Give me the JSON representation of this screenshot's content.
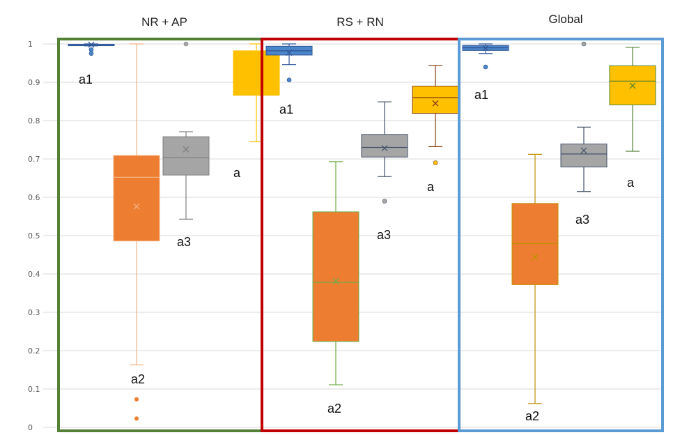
{
  "chart_data": {
    "type": "box",
    "ylim": [
      0,
      1
    ],
    "yticks": [
      "0",
      "0.1",
      "0.2",
      "0.3",
      "0.4",
      "0.5",
      "0.6",
      "0.7",
      "0.8",
      "0.9",
      "1"
    ],
    "grid": true,
    "colors": {
      "blue": "#4a86c8",
      "orange": "#ed7d31",
      "gray": "#a5a5a5",
      "gold": "#ffc000",
      "panel_green": "#538135",
      "panel_red": "#c00000",
      "panel_blue": "#5b9bd5"
    },
    "groups": [
      {
        "title": "NR + AP",
        "panel_color": "#538135",
        "boxes": [
          {
            "color": "#4a86c8",
            "whisker_color": "#2f5597",
            "min": 0.995,
            "q1": 0.997,
            "median": 0.998,
            "q3": 0.999,
            "max": 1.0,
            "mean": 0.998,
            "outliers": [
              0.985,
              0.975
            ],
            "label": "a1"
          },
          {
            "color": "#ed7d31",
            "whisker_color": "#f4b183",
            "min": 0.163,
            "q1": 0.486,
            "median": 0.652,
            "q3": 0.709,
            "max": 1.0,
            "mean": 0.576,
            "outliers": [
              0.073,
              0.023
            ],
            "label": "a2"
          },
          {
            "color": "#a5a5a5",
            "whisker_color": "#7f7f7f",
            "min": 0.543,
            "q1": 0.658,
            "median": 0.704,
            "q3": 0.758,
            "max": 0.771,
            "mean": 0.725,
            "outliers": [
              1.0
            ],
            "label": "a3"
          },
          {
            "color": "#ffc000",
            "whisker_color": "#ffc000",
            "min": 0.745,
            "q1": 0.866,
            "median": 0.974,
            "q3": 0.982,
            "max": 1.0,
            "mean": 0.928,
            "outliers": [],
            "label": "a"
          }
        ]
      },
      {
        "title": "RS + RN",
        "panel_color": "#c00000",
        "boxes": [
          {
            "color": "#4a86c8",
            "whisker_color": "#2f5597",
            "min": 0.946,
            "q1": 0.971,
            "median": 0.982,
            "q3": 0.994,
            "max": 1.0,
            "mean": 0.977,
            "outliers": [
              0.906
            ],
            "label": "a1"
          },
          {
            "color": "#ed7d31",
            "whisker_color": "#70ad47",
            "min": 0.111,
            "q1": 0.224,
            "median": 0.378,
            "q3": 0.562,
            "max": 0.693,
            "mean": 0.381,
            "outliers": [],
            "label": "a2"
          },
          {
            "color": "#a5a5a5",
            "whisker_color": "#44546a",
            "min": 0.654,
            "q1": 0.705,
            "median": 0.73,
            "q3": 0.764,
            "max": 0.849,
            "mean": 0.728,
            "outliers": [
              0.59
            ],
            "label": "a3"
          },
          {
            "color": "#ffc000",
            "whisker_color": "#843c0c",
            "min": 0.732,
            "q1": 0.819,
            "median": 0.86,
            "q3": 0.89,
            "max": 0.944,
            "mean": 0.845,
            "outliers": [
              0.69
            ],
            "label": "a"
          }
        ]
      },
      {
        "title": "Global",
        "panel_color": "#5b9bd5",
        "boxes": [
          {
            "color": "#4a86c8",
            "whisker_color": "#2f5597",
            "min": 0.975,
            "q1": 0.983,
            "median": 0.99,
            "q3": 0.996,
            "max": 1.0,
            "mean": 0.989,
            "outliers": [
              0.94
            ],
            "label": "a1"
          },
          {
            "color": "#ed7d31",
            "whisker_color": "#bf9000",
            "min": 0.062,
            "q1": 0.372,
            "median": 0.479,
            "q3": 0.584,
            "max": 0.712,
            "mean": 0.444,
            "outliers": [],
            "label": "a2"
          },
          {
            "color": "#a5a5a5",
            "whisker_color": "#44546a",
            "min": 0.615,
            "q1": 0.679,
            "median": 0.713,
            "q3": 0.739,
            "max": 0.783,
            "mean": 0.722,
            "outliers": [
              1.0
            ],
            "label": "a3"
          },
          {
            "color": "#ffc000",
            "whisker_color": "#548235",
            "min": 0.72,
            "q1": 0.841,
            "median": 0.903,
            "q3": 0.943,
            "max": 0.991,
            "mean": 0.891,
            "outliers": [],
            "label": "a"
          }
        ]
      }
    ]
  }
}
